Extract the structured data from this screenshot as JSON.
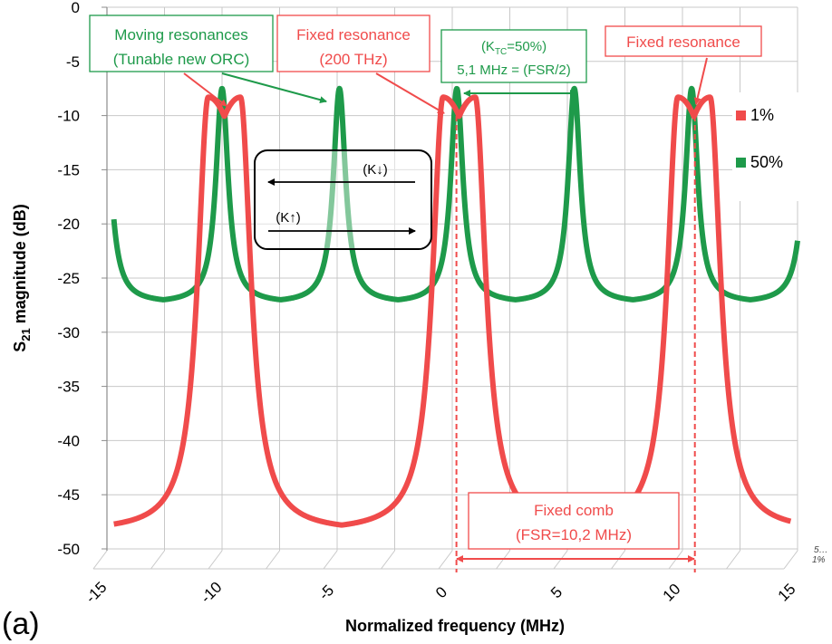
{
  "chart_data": {
    "type": "line",
    "xlabel": "Normalized frequency (MHz)",
    "ylabel_main": "S",
    "ylabel_sub": "21",
    "ylabel_rest": " magnitude (dB)",
    "xlim": [
      -15,
      15
    ],
    "ylim": [
      -50,
      0
    ],
    "xticks": [
      "-15",
      "-10",
      "-5",
      "0",
      "5",
      "10",
      "15"
    ],
    "yticks": [
      "0",
      "-5",
      "-10",
      "-15",
      "-20",
      "-25",
      "-30",
      "-35",
      "-40",
      "-45",
      "-50"
    ],
    "grid": true,
    "legend_position": "right",
    "series": [
      {
        "name": "1%",
        "color": "#f04b4b",
        "fsr": 10.2,
        "resonance_centers": [
          -9.9,
          0.3,
          10.5
        ],
        "peak_split": 0.7,
        "max_db": -8.3,
        "min_db": -47.8
      },
      {
        "name": "50%",
        "color": "#1e9a4a",
        "fsr": 5.1,
        "resonance_centers": [
          -15.1,
          -10.0,
          -4.9,
          0.2,
          5.3,
          10.4,
          15.5
        ],
        "max_db": -7.5,
        "min_db": -27.0
      }
    ],
    "annotations": {
      "moving": [
        "Moving resonances",
        "(Tunable new ORC)"
      ],
      "fixed200": [
        "Fixed resonance",
        "(200 THz)"
      ],
      "ktc_a": "(K",
      "ktc_sub": "TC",
      "ktc_b": "=50%)",
      "ktc_line2": "5,1 MHz = (FSR/2)",
      "fixed_right": "Fixed resonance",
      "k_down": "(K↓)",
      "k_up": "(K↑)",
      "comb": [
        "Fixed comb",
        "(FSR=10,2 MHz)"
      ],
      "corner_1": "5…",
      "corner_2": "1%"
    },
    "panel_label": "(a)"
  },
  "colors": {
    "red": "#f04b4b",
    "green": "#1e9a4a",
    "grid": "#c8c8c8"
  }
}
